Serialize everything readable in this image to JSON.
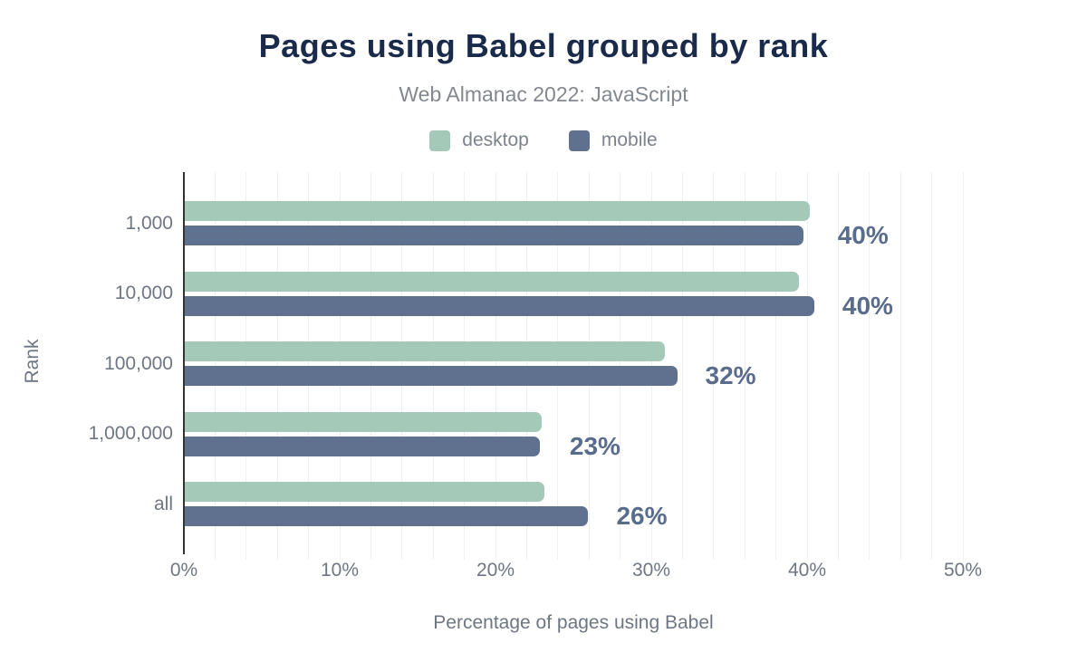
{
  "title": "Pages using Babel grouped by rank",
  "subtitle": "Web Almanac 2022: JavaScript",
  "legend": [
    {
      "label": "desktop",
      "color": "#a5c9b8"
    },
    {
      "label": "mobile",
      "color": "#5f718e"
    }
  ],
  "chart_data": {
    "type": "bar",
    "orientation": "horizontal",
    "title": "Pages using Babel grouped by rank",
    "subtitle": "Web Almanac 2022: JavaScript",
    "categories": [
      "1,000",
      "10,000",
      "100,000",
      "1,000,000",
      "all"
    ],
    "series": [
      {
        "name": "desktop",
        "color": "#a5c9b8",
        "values": [
          40.1,
          39.4,
          30.8,
          22.9,
          23.1
        ]
      },
      {
        "name": "mobile",
        "color": "#5f718e",
        "values": [
          39.7,
          40.4,
          31.6,
          22.8,
          25.9
        ]
      }
    ],
    "data_labels": [
      "40%",
      "40%",
      "32%",
      "23%",
      "26%"
    ],
    "data_label_color": "#5a6c8c",
    "xlabel": "Percentage of pages using Babel",
    "ylabel": "Rank",
    "x_ticks": [
      "0%",
      "10%",
      "20%",
      "30%",
      "40%",
      "50%"
    ],
    "x_tick_values": [
      0,
      10,
      20,
      30,
      40,
      50
    ],
    "xlim": [
      0,
      50
    ],
    "grid": true,
    "grid_step_percent": 2,
    "legend_position": "top"
  }
}
